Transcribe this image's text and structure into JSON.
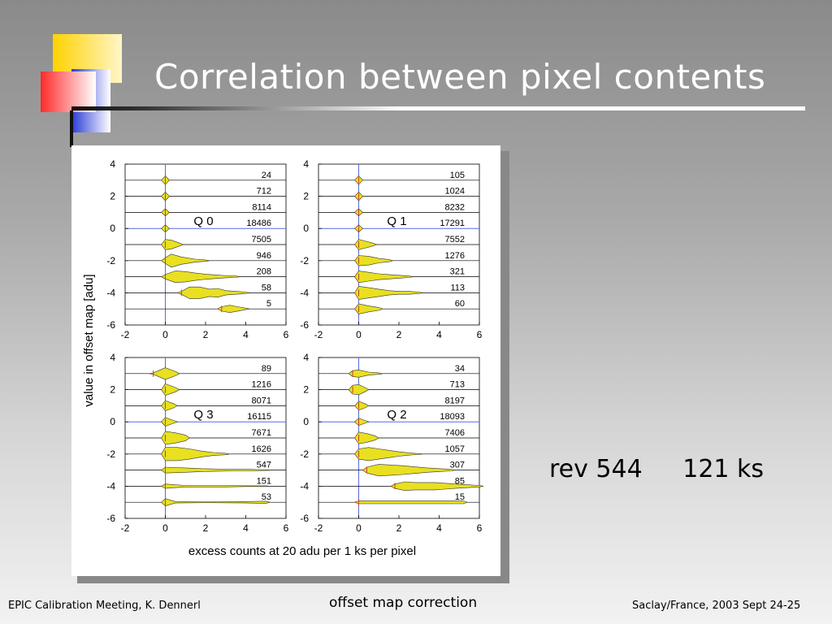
{
  "slide": {
    "title": "Correlation between pixel contents",
    "annotation": {
      "rev": "rev 544",
      "exposure": "121 ks"
    },
    "footer": {
      "left": "EPIC Calibration Meeting, K. Dennerl",
      "center": "offset map correction",
      "right": "Saclay/France, 2003 Sept 24-25"
    }
  },
  "colors": {
    "violin_fill": "#e8e020",
    "median_mark": "#d23a1e",
    "zero_line": "#5a6ae0",
    "row_line": "#000000"
  },
  "chart_data": {
    "type": "violin",
    "xlabel": "excess counts at 20 adu per 1 ks per pixel",
    "ylabel": "value in offset map [adu]",
    "xlim": [
      -2,
      6
    ],
    "ylim": [
      -6,
      4
    ],
    "xticks": [
      "-2",
      "0",
      "2",
      "4",
      "6"
    ],
    "yticks": [
      "4",
      "2",
      "0",
      "-2",
      "-4",
      "-6"
    ],
    "panels": [
      {
        "name": "Q 0",
        "rows": [
          {
            "y": 3,
            "count": "24",
            "shape": [
              [
                0,
                0.6
              ]
            ]
          },
          {
            "y": 2,
            "count": "712",
            "shape": [
              [
                0,
                0.6
              ]
            ]
          },
          {
            "y": 1,
            "count": "8114",
            "shape": [
              [
                0,
                0.5
              ]
            ]
          },
          {
            "y": 0,
            "count": "18486",
            "shape": [
              [
                0,
                0.5
              ]
            ]
          },
          {
            "y": -1,
            "count": "7505",
            "shape": [
              [
                0,
                0.7
              ],
              [
                0.3,
                0.6
              ],
              [
                0.7,
                0.2
              ]
            ]
          },
          {
            "y": -2,
            "count": "946",
            "shape": [
              [
                0,
                0.4
              ],
              [
                0.3,
                0.9
              ],
              [
                0.8,
                0.5
              ],
              [
                1.5,
                0.2
              ],
              [
                2,
                0.1
              ]
            ]
          },
          {
            "y": -3,
            "count": "208",
            "shape": [
              [
                0,
                0.3
              ],
              [
                0.5,
                0.8
              ],
              [
                1,
                0.7
              ],
              [
                1.5,
                0.5
              ],
              [
                2,
                0.35
              ],
              [
                2.5,
                0.25
              ],
              [
                3,
                0.15
              ],
              [
                3.5,
                0.1
              ]
            ]
          },
          {
            "y": -4,
            "count": "58",
            "shape": [
              [
                0.8,
                0.2
              ],
              [
                1.2,
                0.8
              ],
              [
                1.7,
                0.8
              ],
              [
                2.2,
                0.5
              ],
              [
                2.6,
                0.6
              ],
              [
                3,
                0.3
              ],
              [
                3.5,
                0.2
              ],
              [
                4,
                0.1
              ]
            ]
          },
          {
            "y": -5,
            "count": "5",
            "shape": [
              [
                2.8,
                0.3
              ],
              [
                3.2,
                0.5
              ],
              [
                3.6,
                0.3
              ],
              [
                4,
                0.1
              ]
            ]
          }
        ]
      },
      {
        "name": "Q 1",
        "rows": [
          {
            "y": 3,
            "count": "105",
            "shape": [
              [
                0,
                0.6
              ]
            ]
          },
          {
            "y": 2,
            "count": "1024",
            "shape": [
              [
                0,
                0.6
              ]
            ]
          },
          {
            "y": 1,
            "count": "8232",
            "shape": [
              [
                0,
                0.5
              ]
            ]
          },
          {
            "y": 0,
            "count": "17291",
            "shape": [
              [
                0,
                0.5
              ]
            ]
          },
          {
            "y": -1,
            "count": "7552",
            "shape": [
              [
                0,
                0.7
              ],
              [
                0.3,
                0.5
              ],
              [
                0.7,
                0.2
              ]
            ]
          },
          {
            "y": -2,
            "count": "1276",
            "shape": [
              [
                0,
                0.7
              ],
              [
                0.5,
                0.6
              ],
              [
                1,
                0.3
              ],
              [
                1.5,
                0.15
              ]
            ]
          },
          {
            "y": -3,
            "count": "321",
            "shape": [
              [
                0,
                0.8
              ],
              [
                0.5,
                0.6
              ],
              [
                1,
                0.4
              ],
              [
                1.5,
                0.3
              ],
              [
                2,
                0.2
              ],
              [
                2.5,
                0.1
              ]
            ]
          },
          {
            "y": -4,
            "count": "113",
            "shape": [
              [
                0,
                0.9
              ],
              [
                0.5,
                0.7
              ],
              [
                1,
                0.5
              ],
              [
                1.5,
                0.3
              ],
              [
                2,
                0.2
              ],
              [
                2.5,
                0.2
              ],
              [
                3,
                0.1
              ]
            ]
          },
          {
            "y": -5,
            "count": "60",
            "shape": [
              [
                0,
                0.7
              ],
              [
                0.5,
                0.4
              ],
              [
                1,
                0.2
              ]
            ]
          }
        ]
      },
      {
        "name": "Q 3",
        "rows": [
          {
            "y": 3,
            "count": "89",
            "shape": [
              [
                -0.6,
                0.1
              ],
              [
                0,
                0.8
              ],
              [
                0.5,
                0.3
              ]
            ]
          },
          {
            "y": 2,
            "count": "1216",
            "shape": [
              [
                0,
                0.8
              ],
              [
                0.5,
                0.3
              ]
            ]
          },
          {
            "y": 1,
            "count": "8071",
            "shape": [
              [
                0,
                0.7
              ],
              [
                0.4,
                0.3
              ]
            ]
          },
          {
            "y": 0,
            "count": "16115",
            "shape": [
              [
                0,
                0.6
              ],
              [
                0.4,
                0.2
              ]
            ]
          },
          {
            "y": -1,
            "count": "7671",
            "shape": [
              [
                0,
                0.9
              ],
              [
                0.5,
                0.7
              ],
              [
                1,
                0.4
              ]
            ]
          },
          {
            "y": -2,
            "count": "1626",
            "shape": [
              [
                0,
                0.9
              ],
              [
                0.6,
                0.9
              ],
              [
                1.2,
                0.7
              ],
              [
                1.8,
                0.4
              ],
              [
                2.4,
                0.2
              ],
              [
                3,
                0.1
              ]
            ]
          },
          {
            "y": -3,
            "count": "547",
            "shape": [
              [
                0,
                0.4
              ],
              [
                1,
                0.3
              ],
              [
                1.8,
                0.2
              ],
              [
                2.6,
                0.15
              ],
              [
                3.4,
                0.1
              ],
              [
                4.2,
                0.1
              ],
              [
                5,
                0.05
              ]
            ]
          },
          {
            "y": -4,
            "count": "151",
            "shape": [
              [
                0,
                0.3
              ],
              [
                1,
                0.1
              ],
              [
                2,
                0.1
              ],
              [
                3,
                0.1
              ],
              [
                4,
                0.05
              ],
              [
                5,
                0.05
              ]
            ]
          },
          {
            "y": -5,
            "count": "53",
            "shape": [
              [
                0,
                0.5
              ],
              [
                0.5,
                0.1
              ],
              [
                2,
                0.05
              ],
              [
                4,
                0.1
              ],
              [
                5,
                0.15
              ]
            ]
          }
        ]
      },
      {
        "name": "Q 2",
        "rows": [
          {
            "y": 3,
            "count": "34",
            "shape": [
              [
                -0.3,
                0.4
              ],
              [
                0,
                0.5
              ],
              [
                0.5,
                0.2
              ],
              [
                1,
                0.1
              ]
            ]
          },
          {
            "y": 2,
            "count": "713",
            "shape": [
              [
                -0.3,
                0.6
              ],
              [
                0,
                0.7
              ],
              [
                0.3,
                0.3
              ]
            ]
          },
          {
            "y": 1,
            "count": "8197",
            "shape": [
              [
                0,
                0.6
              ],
              [
                0.3,
                0.3
              ]
            ]
          },
          {
            "y": 0,
            "count": "18093",
            "shape": [
              [
                0,
                0.5
              ],
              [
                0.3,
                0.2
              ]
            ]
          },
          {
            "y": -1,
            "count": "7406",
            "shape": [
              [
                0,
                0.8
              ],
              [
                0.4,
                0.6
              ],
              [
                0.8,
                0.3
              ]
            ]
          },
          {
            "y": -2,
            "count": "1057",
            "shape": [
              [
                0,
                0.7
              ],
              [
                0.5,
                0.9
              ],
              [
                1,
                0.7
              ],
              [
                1.5,
                0.5
              ],
              [
                2,
                0.3
              ],
              [
                2.5,
                0.15
              ],
              [
                3,
                0.05
              ]
            ]
          },
          {
            "y": -3,
            "count": "307",
            "shape": [
              [
                0.4,
                0.4
              ],
              [
                1,
                0.8
              ],
              [
                1.6,
                0.7
              ],
              [
                2.2,
                0.6
              ],
              [
                2.8,
                0.45
              ],
              [
                3.4,
                0.3
              ],
              [
                4,
                0.2
              ],
              [
                4.6,
                0.1
              ]
            ]
          },
          {
            "y": -4,
            "count": "85",
            "shape": [
              [
                1.8,
                0.3
              ],
              [
                2.3,
                0.6
              ],
              [
                2.8,
                0.5
              ],
              [
                3.3,
                0.5
              ],
              [
                3.8,
                0.5
              ],
              [
                4.3,
                0.4
              ],
              [
                4.8,
                0.3
              ],
              [
                5.4,
                0.2
              ],
              [
                6,
                0.1
              ]
            ]
          },
          {
            "y": -5,
            "count": "15",
            "shape": [
              [
                0,
                0.2
              ],
              [
                4.6,
                0.2
              ],
              [
                5.2,
                0.2
              ]
            ]
          }
        ]
      }
    ]
  }
}
